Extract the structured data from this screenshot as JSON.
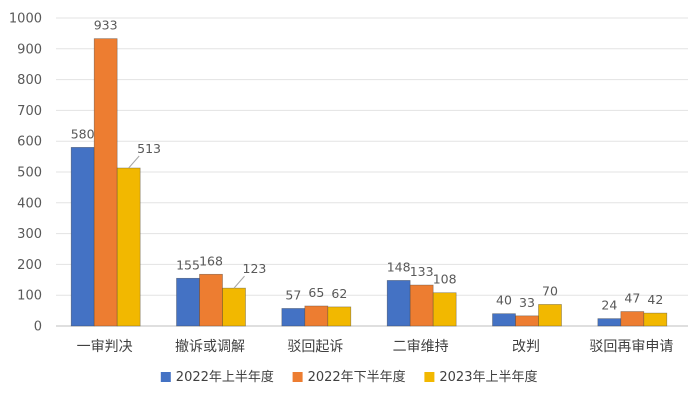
{
  "chart_data": {
    "type": "bar",
    "title": "",
    "xlabel": "",
    "ylabel": "",
    "ylim": [
      0,
      1000
    ],
    "y_ticks": [
      0,
      100,
      200,
      300,
      400,
      500,
      600,
      700,
      800,
      900,
      1000
    ],
    "grid": true,
    "legend_position": "bottom",
    "categories": [
      "一审判决",
      "撤诉或调解",
      "驳回起诉",
      "二审维持",
      "改判",
      "驳回再审申请"
    ],
    "series": [
      {
        "name": "2022年上半年度",
        "color": "#4472C4",
        "values": [
          580,
          155,
          57,
          148,
          40,
          24
        ]
      },
      {
        "name": "2022年下半年度",
        "color": "#ED7D31",
        "values": [
          933,
          168,
          65,
          133,
          33,
          47
        ]
      },
      {
        "name": "2023年上半年度",
        "color": "#F2B800",
        "values": [
          513,
          123,
          62,
          108,
          70,
          42
        ]
      }
    ]
  }
}
